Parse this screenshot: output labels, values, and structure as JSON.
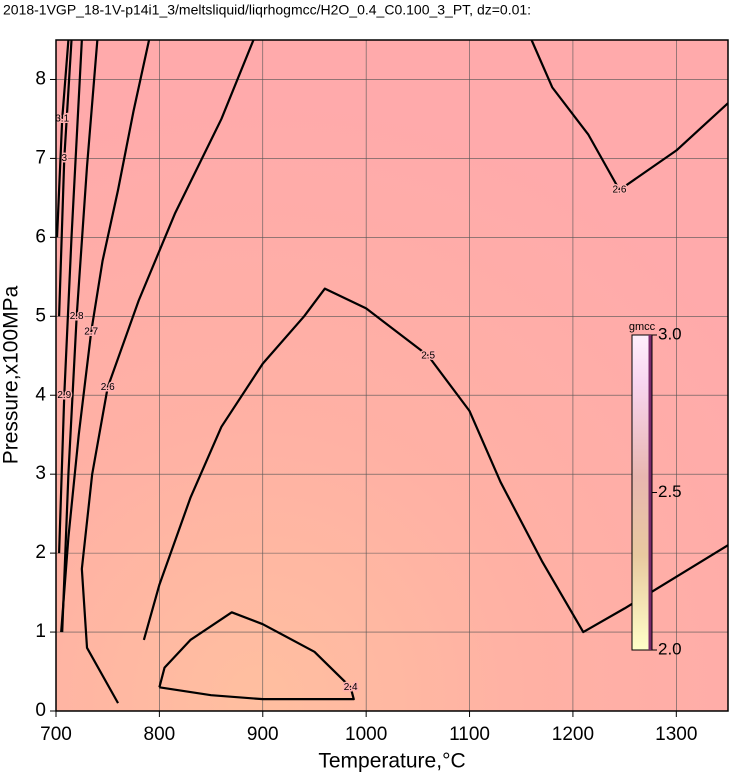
{
  "chart_data": {
    "type": "contour",
    "title": "2018-1VGP_18-1V-p14i1_3/meltsliquid/liqrhogmcc/H2O_0.4_C0.100_3_PT, dz=0.01:",
    "xlabel": "Temperature,°C",
    "ylabel": "Pressure,x100MPa",
    "xlim": [
      700,
      1350
    ],
    "ylim": [
      0,
      8.5
    ],
    "xticks": [
      700,
      800,
      900,
      1000,
      1100,
      1200,
      1300
    ],
    "yticks": [
      0,
      1,
      2,
      3,
      4,
      5,
      6,
      7,
      8
    ],
    "grid": true,
    "contours": [
      {
        "level": 2.4,
        "x": [
          800,
          805,
          830,
          870,
          900,
          950,
          985,
          988,
          950,
          900,
          850,
          800
        ],
        "y": [
          0.3,
          0.55,
          0.9,
          1.25,
          1.1,
          0.75,
          0.3,
          0.15,
          0.15,
          0.15,
          0.2,
          0.3
        ]
      },
      {
        "level": 2.5,
        "x": [
          785,
          800,
          830,
          860,
          900,
          940,
          960,
          1000,
          1060,
          1100,
          1130,
          1170,
          1210,
          1250,
          1300,
          1350
        ],
        "y": [
          0.9,
          1.6,
          2.7,
          3.6,
          4.4,
          5.0,
          5.35,
          5.1,
          4.5,
          3.8,
          2.9,
          1.9,
          1.0,
          1.3,
          1.7,
          2.1
        ]
      },
      {
        "level": 2.6,
        "x": [
          891,
          860,
          815,
          780,
          750,
          735,
          725,
          730,
          760
        ],
        "y": [
          8.5,
          7.5,
          6.3,
          5.2,
          4.1,
          3.0,
          1.8,
          0.8,
          0.1
        ]
      },
      {
        "level": 2.6,
        "x": [
          1160,
          1180,
          1215,
          1245,
          1300,
          1350
        ],
        "y": [
          8.5,
          7.9,
          7.3,
          6.6,
          7.1,
          7.7
        ]
      },
      {
        "level": 2.7,
        "x": [
          790,
          775,
          760,
          745,
          734,
          722,
          712,
          705
        ],
        "y": [
          8.5,
          7.6,
          6.6,
          5.7,
          4.8,
          3.5,
          2.2,
          1.0
        ]
      },
      {
        "level": 2.8,
        "x": [
          740,
          730,
          720,
          712,
          706
        ],
        "y": [
          8.5,
          6.9,
          5.0,
          3.0,
          1.0
        ]
      },
      {
        "level": 2.9,
        "x": [
          725,
          715,
          708,
          703
        ],
        "y": [
          8.5,
          6.0,
          4.0,
          2.0
        ]
      },
      {
        "level": 3,
        "x": [
          715,
          708,
          703
        ],
        "y": [
          8.5,
          7.0,
          5.0
        ]
      },
      {
        "level": 3.1,
        "x": [
          712,
          706,
          701
        ],
        "y": [
          8.5,
          7.5,
          6.0
        ]
      }
    ],
    "colorbar": {
      "label": "gmcc",
      "lim": [
        2,
        3
      ],
      "ticks": [
        {
          "value": 2,
          "label": "2.0"
        },
        {
          "value": 2.5,
          "label": "2.5"
        },
        {
          "value": 3,
          "label": "3.0"
        }
      ]
    }
  }
}
